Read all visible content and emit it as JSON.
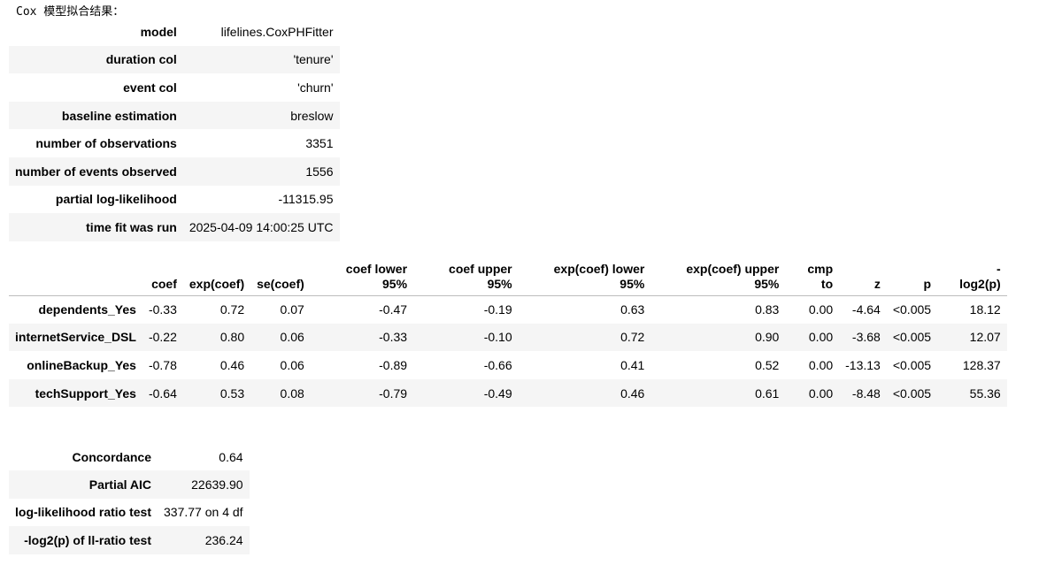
{
  "title": "Cox 模型拟合结果：",
  "summary": [
    {
      "label": "model",
      "value": "lifelines.CoxPHFitter"
    },
    {
      "label": "duration col",
      "value": "'tenure'"
    },
    {
      "label": "event col",
      "value": "'churn'"
    },
    {
      "label": "baseline estimation",
      "value": "breslow"
    },
    {
      "label": "number of observations",
      "value": "3351"
    },
    {
      "label": "number of events observed",
      "value": "1556"
    },
    {
      "label": "partial log-likelihood",
      "value": "-11315.95"
    },
    {
      "label": "time fit was run",
      "value": "2025-04-09 14:00:25 UTC"
    }
  ],
  "coef_table": {
    "headers": [
      {
        "l1": "",
        "l2": "coef"
      },
      {
        "l1": "",
        "l2": "exp(coef)"
      },
      {
        "l1": "",
        "l2": "se(coef)"
      },
      {
        "l1": "coef lower",
        "l2": "95%"
      },
      {
        "l1": "coef upper",
        "l2": "95%"
      },
      {
        "l1": "exp(coef) lower",
        "l2": "95%"
      },
      {
        "l1": "exp(coef) upper",
        "l2": "95%"
      },
      {
        "l1": "cmp",
        "l2": "to"
      },
      {
        "l1": "",
        "l2": "z"
      },
      {
        "l1": "",
        "l2": "p"
      },
      {
        "l1": "-",
        "l2": "log2(p)"
      }
    ],
    "rows": [
      {
        "name": "dependents_Yes",
        "cells": [
          "-0.33",
          "0.72",
          "0.07",
          "-0.47",
          "-0.19",
          "0.63",
          "0.83",
          "0.00",
          "-4.64",
          "<0.005",
          "18.12"
        ]
      },
      {
        "name": "internetService_DSL",
        "cells": [
          "-0.22",
          "0.80",
          "0.06",
          "-0.33",
          "-0.10",
          "0.72",
          "0.90",
          "0.00",
          "-3.68",
          "<0.005",
          "12.07"
        ]
      },
      {
        "name": "onlineBackup_Yes",
        "cells": [
          "-0.78",
          "0.46",
          "0.06",
          "-0.89",
          "-0.66",
          "0.41",
          "0.52",
          "0.00",
          "-13.13",
          "<0.005",
          "128.37"
        ]
      },
      {
        "name": "techSupport_Yes",
        "cells": [
          "-0.64",
          "0.53",
          "0.08",
          "-0.79",
          "-0.49",
          "0.46",
          "0.61",
          "0.00",
          "-8.48",
          "<0.005",
          "55.36"
        ]
      }
    ]
  },
  "stats": [
    {
      "label": "Concordance",
      "value": "0.64"
    },
    {
      "label": "Partial AIC",
      "value": "22639.90"
    },
    {
      "label": "log-likelihood ratio test",
      "value": "337.77 on 4 df"
    },
    {
      "label": "-log2(p) of ll-ratio test",
      "value": "236.24"
    }
  ]
}
